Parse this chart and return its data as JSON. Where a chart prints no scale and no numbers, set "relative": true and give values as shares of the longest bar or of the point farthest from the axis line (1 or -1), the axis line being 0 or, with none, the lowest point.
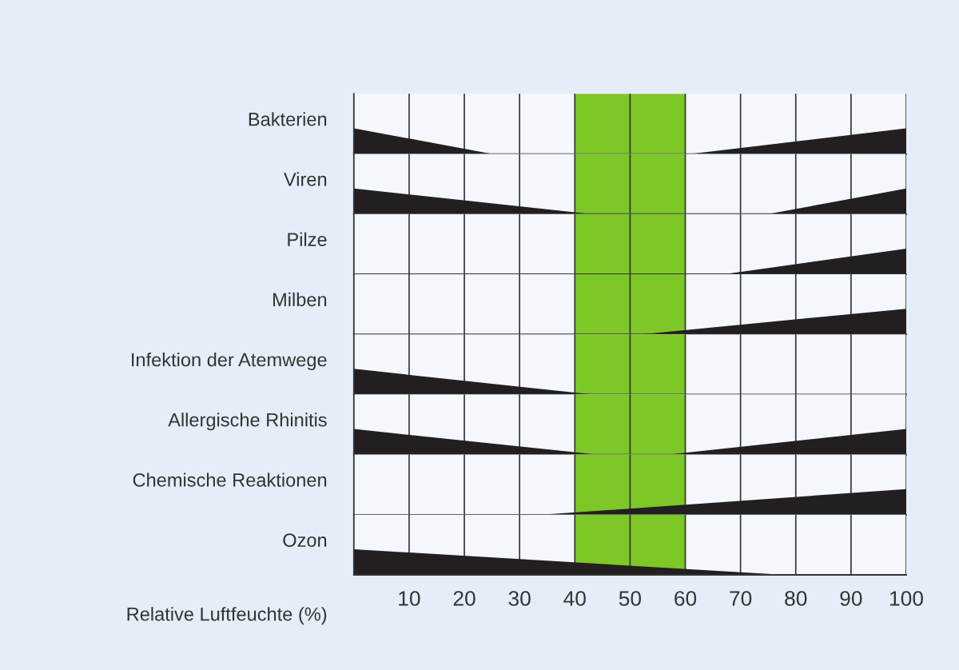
{
  "chart_data": [
    {
      "type": "area",
      "relative": true,
      "ylabel": "Bakterien",
      "xlim": [
        0,
        100
      ],
      "xticks": [
        10,
        20,
        30,
        40,
        50,
        60,
        70,
        80,
        90,
        100
      ],
      "tick_labels": false,
      "grid": "x",
      "bands": [
        {
          "axis": "x",
          "from": 40,
          "to": 60,
          "color": "#7dc726"
        }
      ],
      "series": [
        {
          "color": "#231f20",
          "x": [
            0,
            25
          ],
          "values": [
            1,
            0
          ]
        },
        {
          "color": "#231f20",
          "x": [
            61,
            100
          ],
          "values": [
            0,
            1
          ]
        }
      ]
    },
    {
      "type": "area",
      "relative": true,
      "ylabel": "Viren",
      "xlim": [
        0,
        100
      ],
      "xticks": [
        10,
        20,
        30,
        40,
        50,
        60,
        70,
        80,
        90,
        100
      ],
      "tick_labels": false,
      "grid": "x",
      "bands": [
        {
          "axis": "x",
          "from": 40,
          "to": 60,
          "color": "#7dc726"
        }
      ],
      "series": [
        {
          "color": "#231f20",
          "x": [
            0,
            43
          ],
          "values": [
            1,
            0
          ]
        },
        {
          "color": "#231f20",
          "x": [
            75,
            100
          ],
          "values": [
            0,
            1
          ]
        }
      ]
    },
    {
      "type": "area",
      "relative": true,
      "ylabel": "Pilze",
      "xlim": [
        0,
        100
      ],
      "xticks": [
        10,
        20,
        30,
        40,
        50,
        60,
        70,
        80,
        90,
        100
      ],
      "tick_labels": false,
      "grid": "x",
      "bands": [
        {
          "axis": "x",
          "from": 40,
          "to": 60,
          "color": "#7dc726"
        }
      ],
      "series": [
        {
          "color": "#231f20",
          "x": [
            67,
            100
          ],
          "values": [
            0,
            1
          ]
        }
      ]
    },
    {
      "type": "area",
      "relative": true,
      "ylabel": "Milben",
      "xlim": [
        0,
        100
      ],
      "xticks": [
        10,
        20,
        30,
        40,
        50,
        60,
        70,
        80,
        90,
        100
      ],
      "tick_labels": false,
      "grid": "x",
      "bands": [
        {
          "axis": "x",
          "from": 40,
          "to": 60,
          "color": "#7dc726"
        }
      ],
      "series": [
        {
          "color": "#231f20",
          "x": [
            52,
            100
          ],
          "values": [
            0,
            1
          ]
        }
      ]
    },
    {
      "type": "area",
      "relative": true,
      "ylabel": "Infektion der Atemwege",
      "xlim": [
        0,
        100
      ],
      "xticks": [
        10,
        20,
        30,
        40,
        50,
        60,
        70,
        80,
        90,
        100
      ],
      "tick_labels": false,
      "grid": "x",
      "bands": [
        {
          "axis": "x",
          "from": 40,
          "to": 60,
          "color": "#7dc726"
        }
      ],
      "series": [
        {
          "color": "#231f20",
          "x": [
            0,
            43
          ],
          "values": [
            1,
            0
          ]
        }
      ]
    },
    {
      "type": "area",
      "relative": true,
      "ylabel": "Allergische Rhinitis",
      "xlim": [
        0,
        100
      ],
      "xticks": [
        10,
        20,
        30,
        40,
        50,
        60,
        70,
        80,
        90,
        100
      ],
      "tick_labels": false,
      "grid": "x",
      "bands": [
        {
          "axis": "x",
          "from": 40,
          "to": 60,
          "color": "#7dc726"
        }
      ],
      "series": [
        {
          "color": "#231f20",
          "x": [
            0,
            44
          ],
          "values": [
            1,
            0
          ]
        },
        {
          "color": "#231f20",
          "x": [
            57,
            100
          ],
          "values": [
            0,
            1
          ]
        }
      ]
    },
    {
      "type": "area",
      "relative": true,
      "ylabel": "Chemische Reaktionen",
      "xlim": [
        0,
        100
      ],
      "xticks": [
        10,
        20,
        30,
        40,
        50,
        60,
        70,
        80,
        90,
        100
      ],
      "tick_labels": false,
      "grid": "x",
      "bands": [
        {
          "axis": "x",
          "from": 40,
          "to": 60,
          "color": "#7dc726"
        }
      ],
      "series": [
        {
          "color": "#231f20",
          "x": [
            34,
            100
          ],
          "values": [
            0,
            1
          ]
        }
      ]
    },
    {
      "type": "area",
      "relative": true,
      "ylabel": "Ozon",
      "xlabel": "Relative Luftfeuchte (%)",
      "xlim": [
        0,
        100
      ],
      "xticks": [
        10,
        20,
        30,
        40,
        50,
        60,
        70,
        80,
        90,
        100
      ],
      "tick_labels": "x",
      "grid": "x",
      "bands": [
        {
          "axis": "x",
          "from": 40,
          "to": 60,
          "color": "#7dc726"
        }
      ],
      "series": [
        {
          "color": "#231f20",
          "x": [
            0,
            78
          ],
          "values": [
            1,
            0
          ]
        }
      ]
    }
  ]
}
